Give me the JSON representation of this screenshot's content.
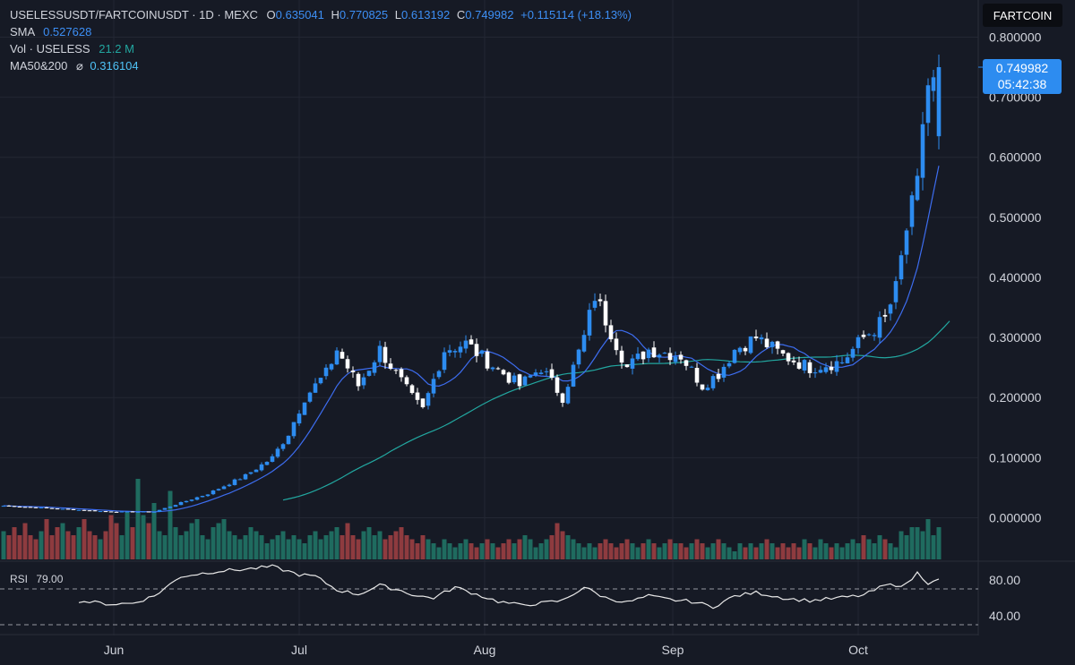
{
  "header": {
    "symbol": "USELESSUSDT/FARTCOINUSDT · 1D · MEXC",
    "o_label": "O",
    "o": "0.635041",
    "h_label": "H",
    "h": "0.770825",
    "l_label": "L",
    "l": "0.613192",
    "c_label": "C",
    "c": "0.749982",
    "change": "+0.115114 (+18.13%)",
    "sma_label": "SMA",
    "sma": "0.527628",
    "vol_label": "Vol · USELESS",
    "vol": "21.2 M",
    "ma_label": "MA50&200",
    "ma_symbol": "⌀",
    "ma": "0.316104"
  },
  "badge": "FARTCOIN",
  "last_price": "0.749982",
  "countdown": "05:42:38",
  "rsi": {
    "label": "RSI",
    "value": "79.00",
    "levels": [
      70,
      30
    ],
    "ticks": [
      "80.00",
      "40.00"
    ]
  },
  "colors": {
    "bg": "#161a25",
    "up": "#2d8cf0",
    "down": "#ffffff",
    "vol_up": "#1f6b5f",
    "vol_down": "#8e3b3f",
    "sma": "#3d6df0",
    "ma50": "#22a7a0"
  },
  "chart_data": {
    "type": "candlestick",
    "ylim": [
      -0.075,
      0.81
    ],
    "y_ticks": [
      "0.800000",
      "0.700000",
      "0.600000",
      "0.500000",
      "0.400000",
      "0.300000",
      "0.200000",
      "0.100000",
      "0.000000"
    ],
    "x_labels": [
      "Jun",
      "Jul",
      "Aug",
      "Sep",
      "Oct"
    ],
    "price_anchors": [
      [
        0,
        0.02
      ],
      [
        10,
        0.015
      ],
      [
        20,
        0.01
      ],
      [
        28,
        0.01
      ],
      [
        33,
        0.025
      ],
      [
        38,
        0.04
      ],
      [
        45,
        0.07
      ],
      [
        50,
        0.1
      ],
      [
        53,
        0.14
      ],
      [
        56,
        0.2
      ],
      [
        60,
        0.24
      ],
      [
        62,
        0.28
      ],
      [
        66,
        0.22
      ],
      [
        70,
        0.28
      ],
      [
        76,
        0.2
      ],
      [
        78,
        0.18
      ],
      [
        82,
        0.28
      ],
      [
        86,
        0.29
      ],
      [
        90,
        0.26
      ],
      [
        96,
        0.22
      ],
      [
        100,
        0.25
      ],
      [
        104,
        0.2
      ],
      [
        108,
        0.3
      ],
      [
        110,
        0.37
      ],
      [
        113,
        0.31
      ],
      [
        116,
        0.25
      ],
      [
        120,
        0.28
      ],
      [
        126,
        0.27
      ],
      [
        130,
        0.22
      ],
      [
        133,
        0.24
      ],
      [
        136,
        0.28
      ],
      [
        140,
        0.3
      ],
      [
        145,
        0.27
      ],
      [
        150,
        0.25
      ],
      [
        156,
        0.26
      ],
      [
        160,
        0.3
      ],
      [
        164,
        0.33
      ],
      [
        166,
        0.38
      ],
      [
        168,
        0.48
      ],
      [
        170,
        0.55
      ],
      [
        171,
        0.66
      ],
      [
        172,
        0.72
      ]
    ],
    "volume_levels": [
      0.35,
      0.3,
      0.4,
      0.3,
      0.45,
      0.3,
      0.25,
      0.35,
      0.5,
      0.3,
      0.4,
      0.45,
      0.35,
      0.3,
      0.4,
      0.5,
      0.35,
      0.3,
      0.25,
      0.35,
      0.55,
      0.45,
      0.3,
      0.6,
      0.4,
      1.0,
      0.55,
      0.45,
      0.7,
      0.35,
      0.3,
      0.85,
      0.4,
      0.3,
      0.35,
      0.45,
      0.5,
      0.3,
      0.25,
      0.4,
      0.45,
      0.5,
      0.35,
      0.3,
      0.25,
      0.3,
      0.4,
      0.35,
      0.3,
      0.2,
      0.25,
      0.3,
      0.35,
      0.25,
      0.3,
      0.25,
      0.2,
      0.3,
      0.35,
      0.25,
      0.3,
      0.35,
      0.4,
      0.3,
      0.45,
      0.3,
      0.25,
      0.35,
      0.4,
      0.3,
      0.35,
      0.25,
      0.3,
      0.35,
      0.4,
      0.3,
      0.25,
      0.2,
      0.3,
      0.25,
      0.2,
      0.15,
      0.25,
      0.2,
      0.15,
      0.2,
      0.25,
      0.2,
      0.15,
      0.2,
      0.25,
      0.2,
      0.15,
      0.2,
      0.25,
      0.2,
      0.25,
      0.3,
      0.25,
      0.15,
      0.2,
      0.25,
      0.3,
      0.45,
      0.35,
      0.3,
      0.25,
      0.2,
      0.15,
      0.2,
      0.15,
      0.2,
      0.25,
      0.2,
      0.15,
      0.2,
      0.25,
      0.2,
      0.15,
      0.2,
      0.25,
      0.2,
      0.15,
      0.2,
      0.25,
      0.2,
      0.2,
      0.15,
      0.2,
      0.25,
      0.2,
      0.15,
      0.2,
      0.25,
      0.2,
      0.15,
      0.1,
      0.2,
      0.15,
      0.2,
      0.15,
      0.2,
      0.25,
      0.2,
      0.15,
      0.2,
      0.15,
      0.2,
      0.15,
      0.25,
      0.2,
      0.15,
      0.25,
      0.2,
      0.15,
      0.2,
      0.15,
      0.2,
      0.25,
      0.2,
      0.3,
      0.25,
      0.2,
      0.3,
      0.25,
      0.2,
      0.15,
      0.35,
      0.3,
      0.4,
      0.4,
      0.35,
      0.5,
      0.3,
      0.4,
      0.6,
      0.5
    ],
    "rsi_anchors": [
      [
        10,
        59
      ],
      [
        15,
        56
      ],
      [
        20,
        53
      ],
      [
        24,
        54
      ],
      [
        28,
        62
      ],
      [
        33,
        84
      ],
      [
        40,
        90
      ],
      [
        45,
        92
      ],
      [
        50,
        95
      ],
      [
        55,
        86
      ],
      [
        58,
        84
      ],
      [
        62,
        69
      ],
      [
        66,
        64
      ],
      [
        70,
        74
      ],
      [
        74,
        68
      ],
      [
        77,
        62
      ],
      [
        80,
        60
      ],
      [
        84,
        72
      ],
      [
        88,
        64
      ],
      [
        92,
        56
      ],
      [
        96,
        52
      ],
      [
        100,
        54
      ],
      [
        104,
        57
      ],
      [
        108,
        72
      ],
      [
        112,
        60
      ],
      [
        116,
        55
      ],
      [
        120,
        62
      ],
      [
        124,
        58
      ],
      [
        128,
        56
      ],
      [
        132,
        50
      ],
      [
        136,
        62
      ],
      [
        140,
        66
      ],
      [
        146,
        59
      ],
      [
        150,
        57
      ],
      [
        154,
        59
      ],
      [
        160,
        63
      ],
      [
        164,
        74
      ],
      [
        168,
        75
      ],
      [
        170,
        88
      ],
      [
        172,
        77
      ],
      [
        173,
        80
      ]
    ]
  }
}
